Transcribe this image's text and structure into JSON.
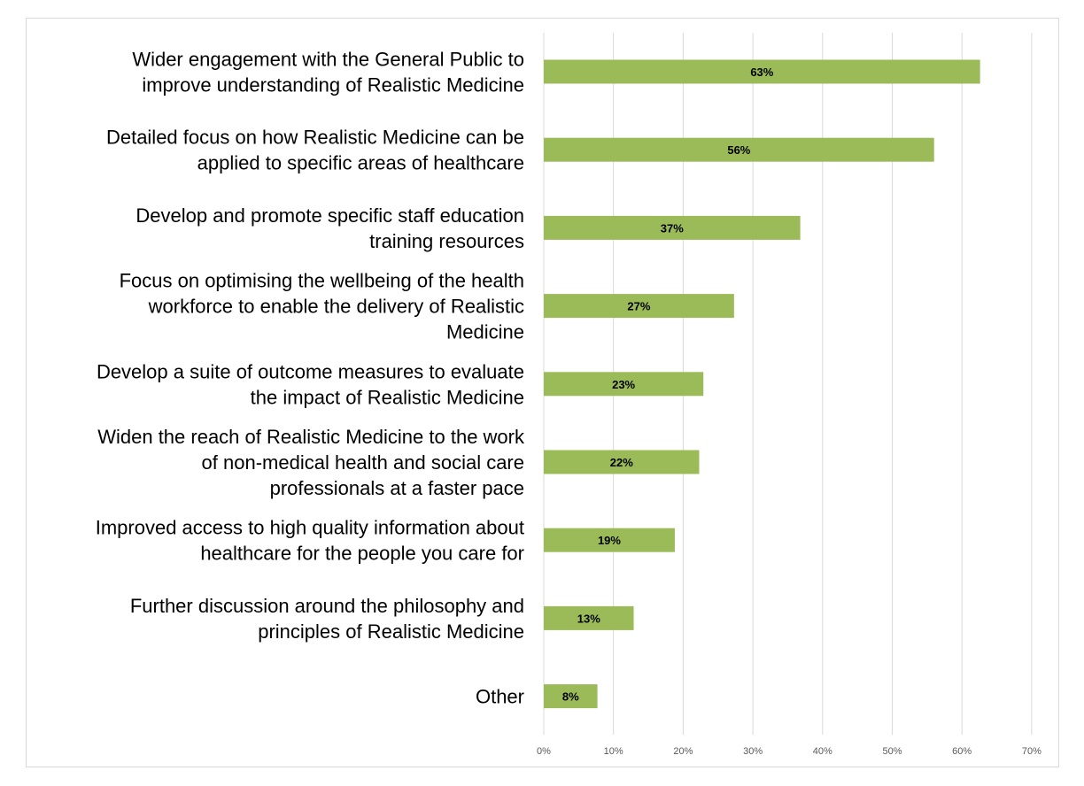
{
  "chart_data": {
    "type": "bar",
    "orientation": "horizontal",
    "title": "",
    "xlabel": "",
    "ylabel": "",
    "categories": [
      [
        "Wider engagement with the General Public to",
        "improve understanding of Realistic Medicine"
      ],
      [
        "Detailed focus on how Realistic Medicine can be",
        "applied to specific areas of healthcare"
      ],
      [
        "Develop and promote specific staff education",
        "training resources"
      ],
      [
        "Focus on optimising the wellbeing of the health",
        "workforce to enable the delivery of Realistic",
        "Medicine"
      ],
      [
        "Develop a suite of outcome measures to evaluate",
        "the impact of Realistic Medicine"
      ],
      [
        "Widen the reach of Realistic Medicine to the work",
        "of non-medical health and social care",
        "professionals at a faster pace"
      ],
      [
        "Improved access to high quality information about",
        "healthcare for the people you care for"
      ],
      [
        "Further discussion around the philosophy and",
        "principles of Realistic Medicine"
      ],
      [
        "Other"
      ]
    ],
    "values": [
      62.6,
      56.0,
      36.8,
      27.3,
      22.9,
      22.3,
      18.8,
      12.9,
      7.7
    ],
    "data_labels": [
      "63%",
      "56%",
      "37%",
      "27%",
      "23%",
      "22%",
      "19%",
      "13%",
      "8%"
    ],
    "xlim": [
      0,
      70
    ],
    "x_ticks": [
      "0%",
      "10%",
      "20%",
      "30%",
      "40%",
      "50%",
      "60%",
      "70%"
    ],
    "x_tick_values": [
      0,
      10,
      20,
      30,
      40,
      50,
      60,
      70
    ],
    "grid": true,
    "legend": "none",
    "bar_color": "#9bbb59",
    "grid_color": "#d9d9d9"
  }
}
